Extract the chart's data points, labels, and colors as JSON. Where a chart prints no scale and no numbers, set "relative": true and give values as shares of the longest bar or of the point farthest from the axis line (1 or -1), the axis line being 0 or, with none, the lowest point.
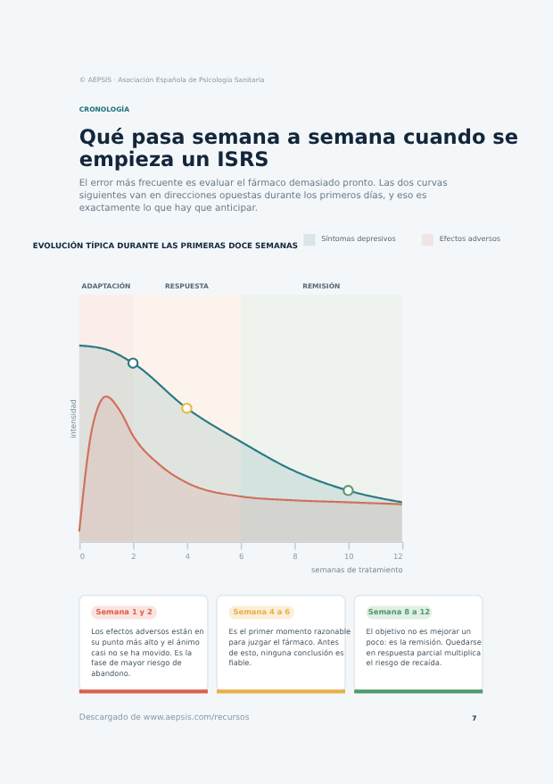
{
  "chart_data": {
    "type": "area",
    "title": "EVOLUCIÓN TÍPICA DURANTE LAS PRIMERAS DOCE SEMANAS",
    "xlabel": "semanas de tratamiento",
    "ylabel": "intensidad",
    "relative": true,
    "legend": "top right",
    "grid": false,
    "marker": "none",
    "xlim": [
      0,
      12
    ],
    "xticks": [
      0,
      2,
      4,
      6,
      8,
      10,
      12
    ],
    "series": [
      {
        "name": "Síntomas depresivos",
        "color": "#2a7a84",
        "x": [
          0,
          1,
          2,
          4,
          6,
          8,
          10,
          12
        ],
        "values": [
          1.0,
          0.98,
          0.91,
          0.68,
          0.51,
          0.36,
          0.26,
          0.2
        ]
      },
      {
        "name": "Efectos adversos",
        "color": "#d0705c",
        "x": [
          0,
          0.5,
          1,
          1.5,
          2,
          3,
          4,
          6,
          8,
          10,
          12
        ],
        "values": [
          0.05,
          0.59,
          0.74,
          0.67,
          0.54,
          0.39,
          0.3,
          0.23,
          0.21,
          0.2,
          0.19
        ]
      },
      {
        "type": "scatter",
        "marker": "circle",
        "x": [
          2,
          4,
          10
        ],
        "values": [
          0.91,
          0.68,
          0.26
        ],
        "colors": [
          "#2a7a84",
          "#e8b84a",
          "#5a9a70"
        ]
      }
    ],
    "bands": [
      {
        "axis": "x",
        "from": 0,
        "to": 2,
        "label": "ADAPTACIÓN",
        "color": "#fbeeea"
      },
      {
        "axis": "x",
        "from": 2,
        "to": 6,
        "label": "RESPUESTA",
        "color": "#fcf4ec"
      },
      {
        "axis": "x",
        "from": 6,
        "to": 12,
        "label": "REMISIÓN",
        "color": "#eef3ee"
      }
    ],
    "annotations": [
      "© AEPSIS · Asociación Española de Psicología Sanitaria",
      "CRONOLOGÍA",
      "Qué pasa semana a semana cuando se empieza un ISRS",
      "El error más frecuente es evaluar el fármaco demasiado pronto. Las dos curvas siguientes van en direcciones opuestas durante los primeros días, y eso es exactamente lo que hay que anticipar.",
      "Semana 1 y 2",
      "Los efectos adversos están en su punto más alto y el ánimo casi no se ha movido. Es la fase de mayor riesgo de abandono.",
      "Semana 4 a 6",
      "Es el primer momento razonable para juzgar el fármaco. Antes de esto, ninguna conclusión es fiable.",
      "Semana 8 a 12",
      "El objetivo no es mejorar un poco: es la remisión. Quedarse en respuesta parcial multiplica el riesgo de recaída.",
      "Descargado de www.aepsis.com/recursos",
      "7"
    ]
  }
}
